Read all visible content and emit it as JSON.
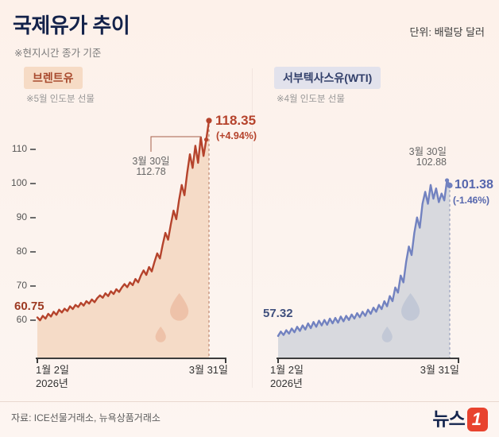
{
  "header": {
    "title": "국제유가 추이",
    "subtitle": "※현지시간 종가 기준",
    "unit": "단위: 배럴당 달러"
  },
  "brent": {
    "badge": "브렌트유",
    "note": "※5월 인도분 선물",
    "start": "60.75",
    "peak_date": "3월 30일",
    "peak_value": "112.78",
    "end_value": "118.35",
    "end_change": "(+4.94%)",
    "x_start_month": "1월 2일",
    "x_start_year": "2026년",
    "x_end": "3월 31일"
  },
  "wti": {
    "badge": "서부텍사스유(WTI)",
    "note": "※4월 인도분 선물",
    "start": "57.32",
    "peak_date": "3월 30일",
    "peak_value": "102.88",
    "end_value": "101.38",
    "end_change": "(-1.46%)",
    "x_start_month": "1월 2일",
    "x_start_year": "2026년",
    "x_end": "3월 31일"
  },
  "footer": {
    "source": "자료: ICE선물거래소, 뉴욕상품거래소",
    "logo_text": "뉴스",
    "logo_one": "1"
  },
  "chart_data": [
    {
      "type": "line",
      "name": "브렌트유 (Brent crude, 5월 인도분 선물)",
      "title": "국제유가 추이",
      "unit": "배럴당 달러",
      "x_range": [
        "1월 2일 2026년",
        "3월 31일"
      ],
      "yticks": [
        60,
        70,
        80,
        90,
        100,
        110
      ],
      "ylim": [
        49,
        120
      ],
      "line_color": "#b5432c",
      "fill_color": "#f5dbc7",
      "key_points": {
        "start_jan2": 60.75,
        "mar30": 112.78,
        "mar31": 118.35,
        "change_pct": "+4.94%"
      },
      "values": [
        60.75,
        59.9,
        61.2,
        60.4,
        61.8,
        61.0,
        62.4,
        61.5,
        63.0,
        62.2,
        63.3,
        62.6,
        64.0,
        63.2,
        64.4,
        63.8,
        65.0,
        64.2,
        65.5,
        64.8,
        66.0,
        65.2,
        66.4,
        67.2,
        66.5,
        67.8,
        67.0,
        68.4,
        67.6,
        69.0,
        68.2,
        69.5,
        70.5,
        69.6,
        71.0,
        70.2,
        72.0,
        71.0,
        73.0,
        74.5,
        73.2,
        75.5,
        74.2,
        77.0,
        79.5,
        78.0,
        82.0,
        85.5,
        83.5,
        88.0,
        92.0,
        89.5,
        95.0,
        99.5,
        96.5,
        103.0,
        108.5,
        104.5,
        111.0,
        106.0,
        113.5,
        108.0,
        112.78,
        118.35
      ]
    },
    {
      "type": "line",
      "name": "서부텍사스유 WTI (4월 인도분 선물)",
      "title": "국제유가 추이",
      "unit": "배럴당 달러",
      "x_range": [
        "1월 2일 2026년",
        "3월 31일"
      ],
      "yticks": [],
      "ylim": [
        51,
        122
      ],
      "line_color": "#7282c0",
      "fill_color": "#d8d9de",
      "key_points": {
        "start_jan2": 57.32,
        "mar30": 102.88,
        "mar31": 101.38,
        "change_pct": "-1.46%"
      },
      "values": [
        57.32,
        58.6,
        57.6,
        59.0,
        58.0,
        59.5,
        58.4,
        60.0,
        58.8,
        60.4,
        59.2,
        61.0,
        59.6,
        61.4,
        60.0,
        61.8,
        60.4,
        62.0,
        60.6,
        62.4,
        61.0,
        62.6,
        61.2,
        63.0,
        61.6,
        63.2,
        62.0,
        63.6,
        62.4,
        64.0,
        62.8,
        64.4,
        63.2,
        65.0,
        63.8,
        65.6,
        64.4,
        66.4,
        65.2,
        67.5,
        66.0,
        69.0,
        67.5,
        71.5,
        70.0,
        75.0,
        73.0,
        79.0,
        83.5,
        81.0,
        87.5,
        92.0,
        89.0,
        96.0,
        99.5,
        96.0,
        101.5,
        97.5,
        100.5,
        96.5,
        99.0,
        97.0,
        102.88,
        101.38
      ]
    }
  ]
}
